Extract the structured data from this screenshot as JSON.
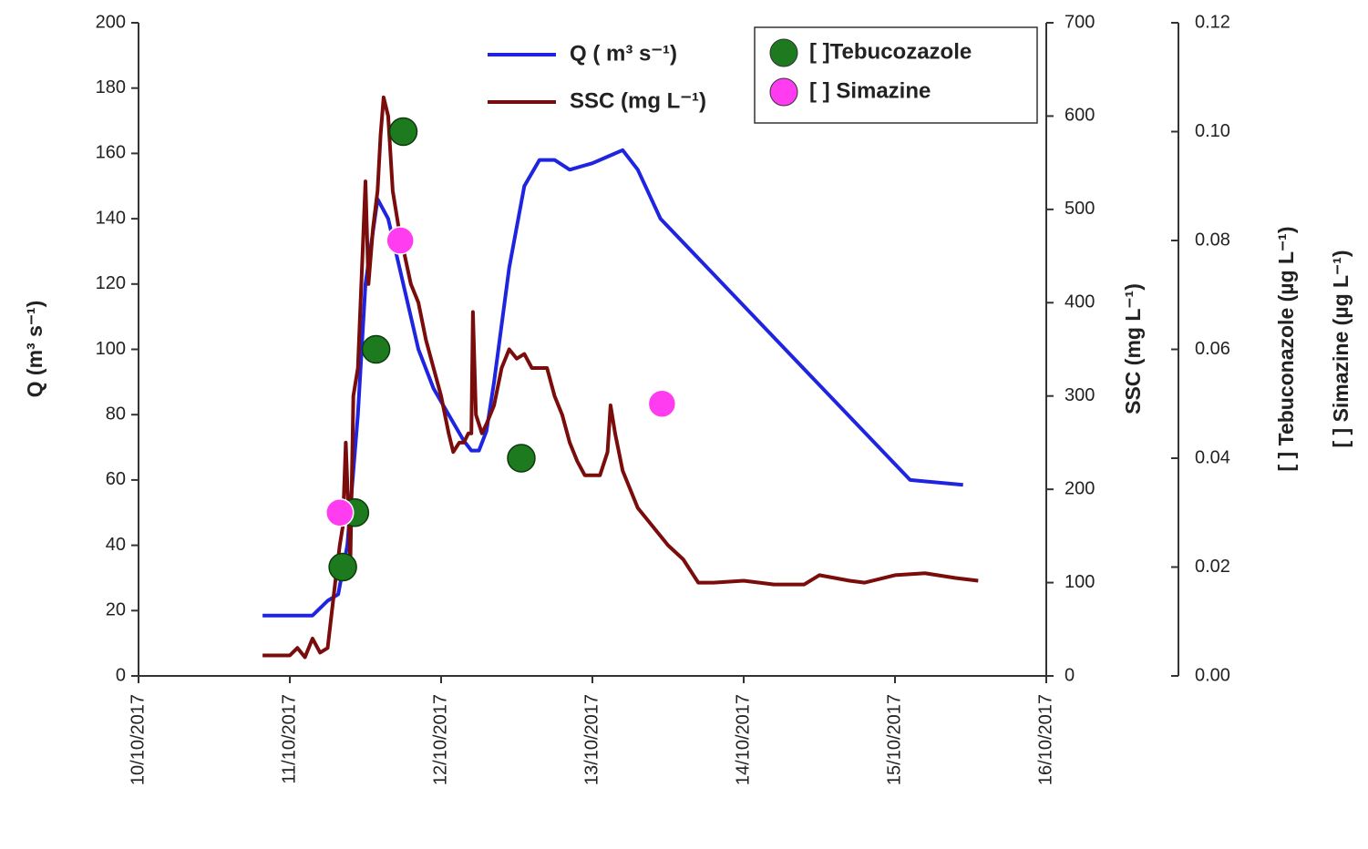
{
  "chart_data": {
    "type": "line",
    "xlim": [
      10,
      16
    ],
    "xticks": [
      {
        "value": 10,
        "label": "10/10/2017"
      },
      {
        "value": 11,
        "label": "11/10/2017"
      },
      {
        "value": 12,
        "label": "12/10/2017"
      },
      {
        "value": 13,
        "label": "13/10/2017"
      },
      {
        "value": 14,
        "label": "14/10/2017"
      },
      {
        "value": 15,
        "label": "15/10/2017"
      },
      {
        "value": 16,
        "label": "16/10/2017"
      }
    ],
    "ylabel": "Q (m³ s⁻¹)",
    "ylim": [
      0,
      200
    ],
    "yticks": [
      0,
      20,
      40,
      60,
      80,
      100,
      120,
      140,
      160,
      180,
      200
    ],
    "y2label": "SSC (mg L⁻¹)",
    "y2lim": [
      0,
      700
    ],
    "y2ticks": [
      0,
      100,
      200,
      300,
      400,
      500,
      600,
      700
    ],
    "y3labels": [
      "[ ] Tebuconazole (µg L⁻¹)",
      "[ ] Simazine (µg L⁻¹)"
    ],
    "y3lim": [
      0,
      0.12
    ],
    "y3ticks": [
      {
        "value": 0,
        "label": "0.00"
      },
      {
        "value": 0.02,
        "label": "0.02"
      },
      {
        "value": 0.04,
        "label": "0.04"
      },
      {
        "value": 0.06,
        "label": "0.06"
      },
      {
        "value": 0.08,
        "label": "0.08"
      },
      {
        "value": 0.1,
        "label": "0.10"
      },
      {
        "value": 0.12,
        "label": "0.12"
      }
    ],
    "series": [
      {
        "name": "Q ( m³ s⁻¹)",
        "type": "line",
        "axis": "y",
        "color": "#1f24e0",
        "x": [
          10.82,
          11.15,
          11.25,
          11.32,
          11.38,
          11.45,
          11.5,
          11.58,
          11.65,
          11.75,
          11.85,
          11.95,
          12.05,
          12.15,
          12.2,
          12.25,
          12.3,
          12.35,
          12.45,
          12.55,
          12.65,
          12.75,
          12.85,
          13.0,
          13.1,
          13.2,
          13.3,
          13.4,
          13.45,
          15.1,
          15.45
        ],
        "values": [
          18.5,
          18.5,
          23,
          25,
          40,
          80,
          120,
          146,
          140,
          120,
          100,
          88,
          80,
          72,
          69,
          69,
          75,
          90,
          125,
          150,
          158,
          158,
          155,
          157,
          159,
          161,
          155,
          145,
          140,
          60,
          58.5
        ]
      },
      {
        "name": "SSC (mg L⁻¹)",
        "type": "line",
        "axis": "y2",
        "color": "#7a0c0c",
        "x": [
          10.82,
          11.0,
          11.05,
          11.1,
          11.15,
          11.2,
          11.25,
          11.3,
          11.33,
          11.35,
          11.37,
          11.4,
          11.42,
          11.45,
          11.48,
          11.5,
          11.52,
          11.55,
          11.58,
          11.6,
          11.62,
          11.65,
          11.68,
          11.72,
          11.76,
          11.8,
          11.85,
          11.9,
          11.95,
          12.0,
          12.05,
          12.08,
          12.12,
          12.15,
          12.18,
          12.2,
          12.21,
          12.23,
          12.27,
          12.3,
          12.35,
          12.4,
          12.45,
          12.5,
          12.55,
          12.6,
          12.7,
          12.75,
          12.8,
          12.85,
          12.9,
          12.95,
          13.05,
          13.1,
          13.12,
          13.15,
          13.2,
          13.3,
          13.4,
          13.5,
          13.6,
          13.7,
          13.8,
          14.0,
          14.2,
          14.4,
          14.5,
          14.7,
          14.8,
          15.0,
          15.2,
          15.4,
          15.55
        ],
        "values": [
          22,
          22,
          30,
          20,
          40,
          25,
          30,
          100,
          140,
          160,
          250,
          120,
          300,
          330,
          450,
          530,
          420,
          480,
          520,
          580,
          620,
          600,
          520,
          480,
          450,
          420,
          400,
          360,
          330,
          300,
          260,
          240,
          250,
          250,
          260,
          260,
          390,
          280,
          260,
          270,
          290,
          330,
          350,
          340,
          345,
          330,
          330,
          300,
          280,
          250,
          230,
          215,
          215,
          240,
          290,
          260,
          220,
          180,
          160,
          140,
          125,
          100,
          100,
          102,
          98,
          98,
          108,
          102,
          100,
          108,
          110,
          105,
          102
        ]
      },
      {
        "name": "[ ]Tebucozazole",
        "type": "scatter",
        "axis": "y3",
        "color": "#1e7a1e",
        "x": [
          11.35,
          11.43,
          11.57,
          11.75,
          12.53
        ],
        "values": [
          0.02,
          0.03,
          0.06,
          0.1,
          0.04
        ]
      },
      {
        "name": "[ ] Simazine",
        "type": "scatter",
        "axis": "y3",
        "color": "#ff3cf0",
        "x": [
          11.33,
          11.73,
          13.46
        ],
        "values": [
          0.03,
          0.08,
          0.05
        ]
      }
    ]
  }
}
